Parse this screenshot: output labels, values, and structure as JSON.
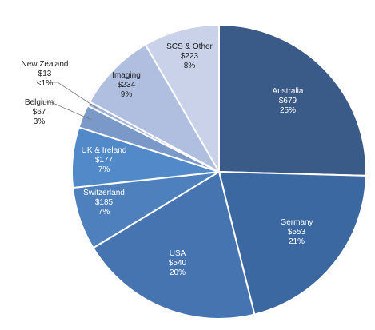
{
  "chart_data": {
    "type": "pie",
    "slices": [
      {
        "name": "Australia",
        "value_label": "$679",
        "pct_label": "25%",
        "value": 679,
        "color": "#3a5a87",
        "text": "#ffffff"
      },
      {
        "name": "Germany",
        "value_label": "$553",
        "pct_label": "21%",
        "value": 553,
        "color": "#3c68a2",
        "text": "#ffffff"
      },
      {
        "name": "USA",
        "value_label": "$540",
        "pct_label": "20%",
        "value": 540,
        "color": "#4674b0",
        "text": "#ffffff"
      },
      {
        "name": "Switzerland",
        "value_label": "$185",
        "pct_label": "7%",
        "value": 185,
        "color": "#4d80bd",
        "text": "#ffffff"
      },
      {
        "name": "UK & Ireland",
        "value_label": "$177",
        "pct_label": "7%",
        "value": 177,
        "color": "#5289c8",
        "text": "#ffffff"
      },
      {
        "name": "Belgium",
        "value_label": "$67",
        "pct_label": "3%",
        "value": 67,
        "color": "#7b99c8",
        "text": "#222222"
      },
      {
        "name": "New Zealand",
        "value_label": "$13",
        "pct_label": "<1%",
        "value": 13,
        "color": "#9fb2d6",
        "text": "#222222"
      },
      {
        "name": "Imaging",
        "value_label": "$234",
        "pct_label": "9%",
        "value": 234,
        "color": "#b0bfdf",
        "text": "#222222"
      },
      {
        "name": "SCS & Other",
        "value_label": "$223",
        "pct_label": "8%",
        "value": 223,
        "color": "#c9d2e8",
        "text": "#222222"
      }
    ]
  }
}
